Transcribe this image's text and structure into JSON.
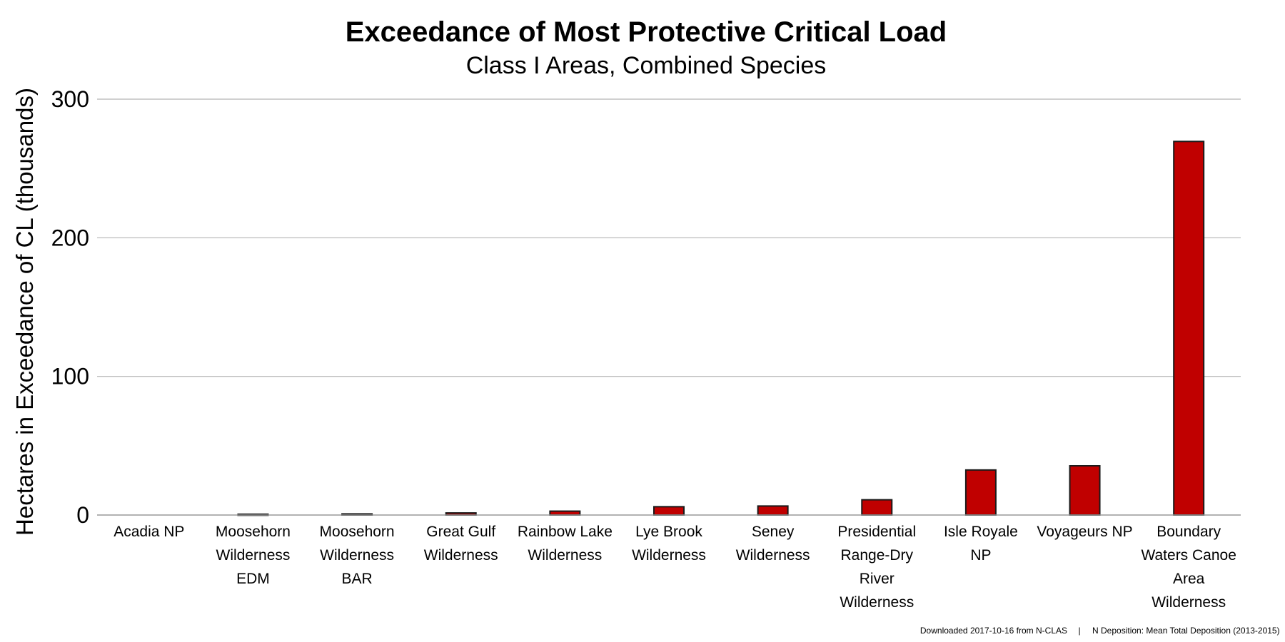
{
  "chart_data": {
    "type": "bar",
    "title": "Exceedance of Most Protective Critical Load",
    "subtitle": "Class I Areas, Combined Species",
    "ylabel": "Hectares in Exceedance of CL (thousands)",
    "xlabel": "",
    "ylim": [
      0,
      300
    ],
    "yticks": [
      "0",
      "100",
      "200",
      "300"
    ],
    "grid": true,
    "bar_color": "#c00000",
    "categories": [
      [
        "Acadia NP"
      ],
      [
        "Moosehorn",
        "Wilderness",
        "EDM"
      ],
      [
        "Moosehorn",
        "Wilderness",
        "BAR"
      ],
      [
        "Great Gulf",
        "Wilderness"
      ],
      [
        "Rainbow Lake",
        "Wilderness"
      ],
      [
        "Lye Brook",
        "Wilderness"
      ],
      [
        "Seney",
        "Wilderness"
      ],
      [
        "Presidential",
        "Range-Dry",
        "River",
        "Wilderness"
      ],
      [
        "Isle Royale",
        "NP"
      ],
      [
        "Voyageurs NP"
      ],
      [
        "Boundary",
        "Waters Canoe",
        "Area",
        "Wilderness"
      ]
    ],
    "values": [
      0,
      0.6,
      0.8,
      1.5,
      2.8,
      6,
      6.5,
      11,
      32.5,
      35.5,
      269.5
    ]
  },
  "footer": {
    "source": "Downloaded 2017-10-16 from N-CLAS",
    "separator": "|",
    "note": "N Deposition: Mean Total Deposition (2013-2015)"
  }
}
